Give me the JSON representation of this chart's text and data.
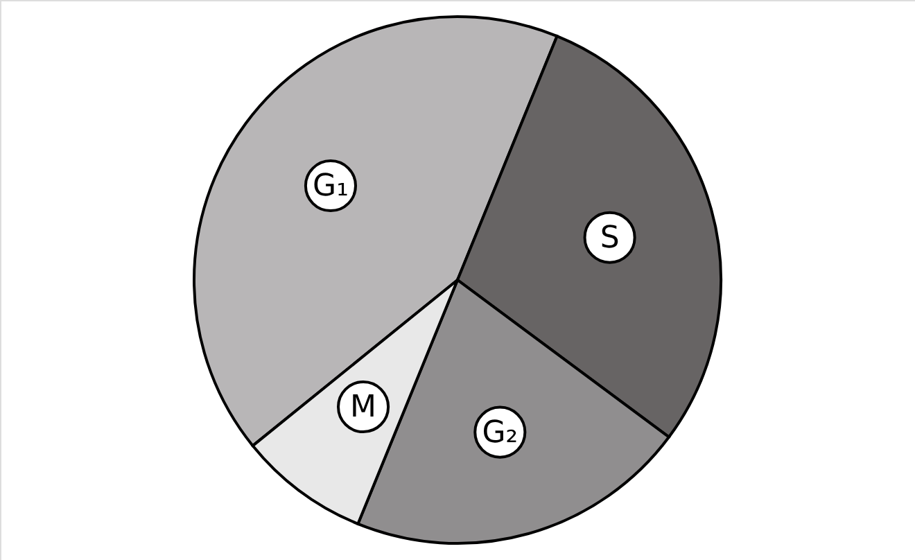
{
  "chart_data": {
    "type": "pie",
    "categories": [
      "G₁",
      "S",
      "G₂",
      "M"
    ],
    "values": [
      42,
      29,
      21,
      8
    ],
    "colors": [
      "#b8b6b7",
      "#676464",
      "#908e8f",
      "#e8e8e8"
    ]
  }
}
